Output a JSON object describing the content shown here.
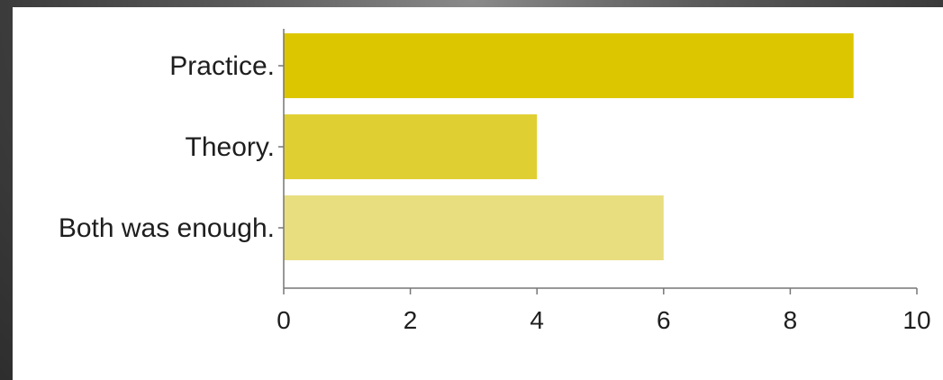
{
  "chart_data": {
    "type": "bar",
    "orientation": "horizontal",
    "categories": [
      "Practice.",
      "Theory.",
      "Both was enough."
    ],
    "values": [
      9,
      4,
      6
    ],
    "colors": [
      "#dcc600",
      "#e0cf33",
      "#e8de80"
    ],
    "xlim": [
      0,
      10
    ],
    "xticks": [
      "0",
      "2",
      "4",
      "6",
      "8",
      "10"
    ],
    "grid": false
  }
}
